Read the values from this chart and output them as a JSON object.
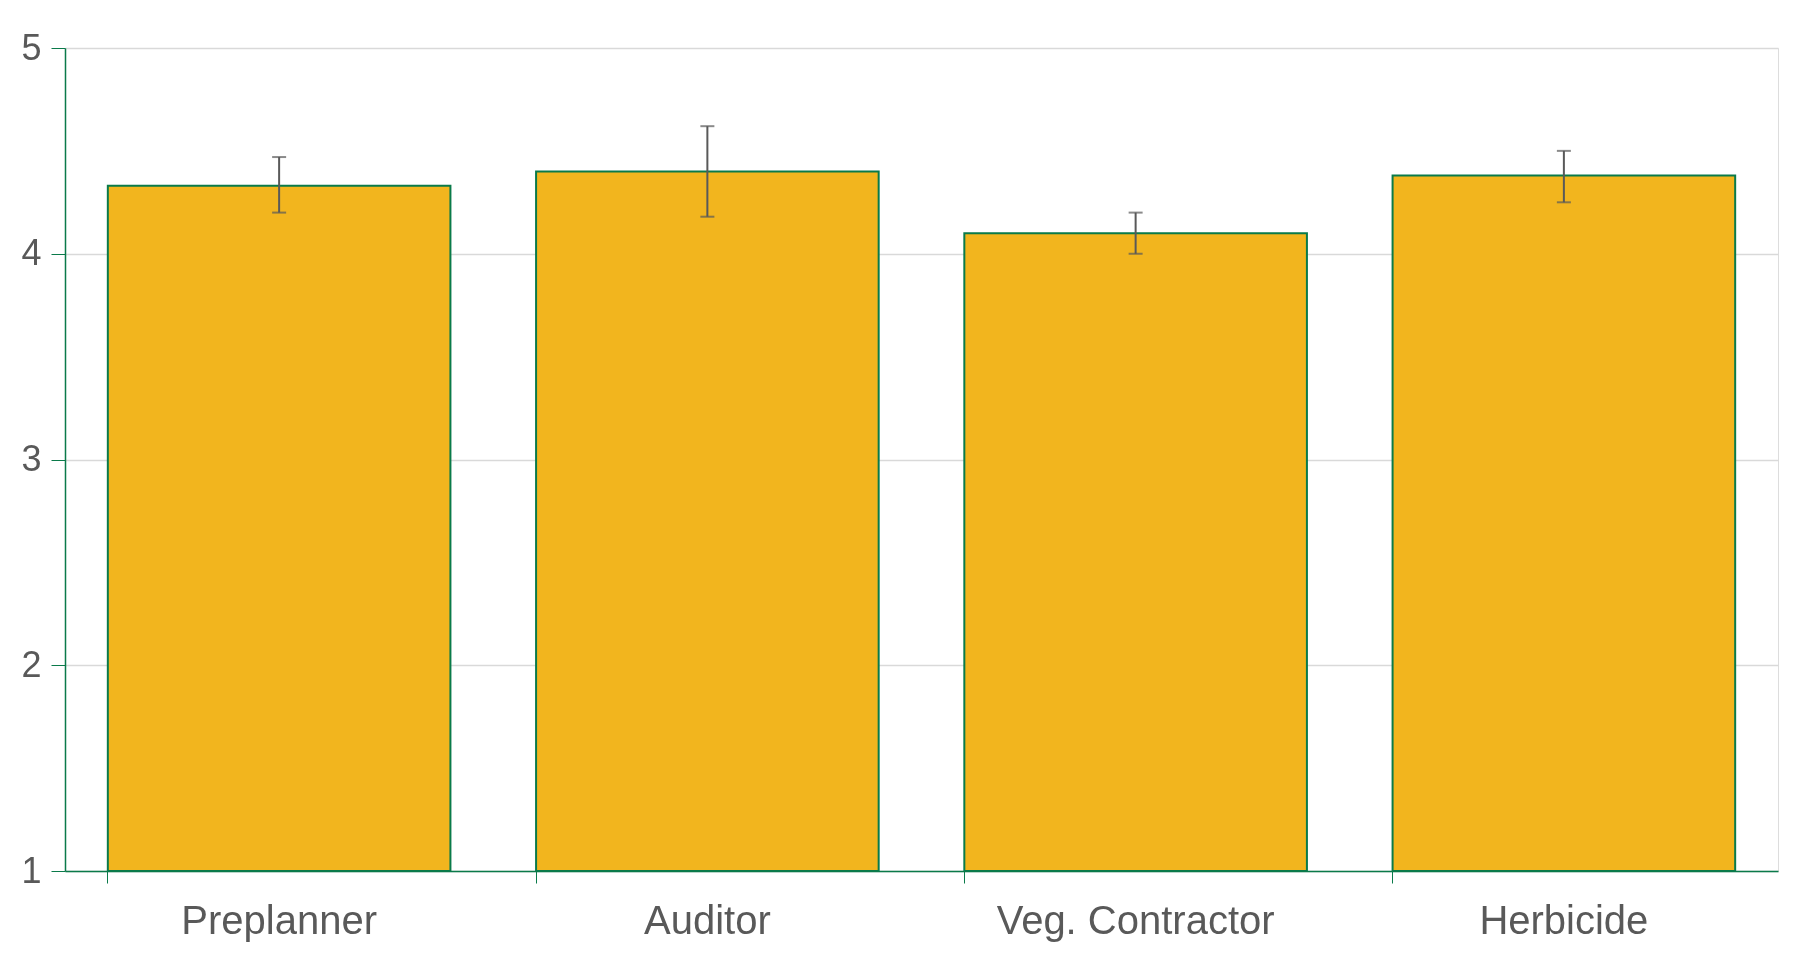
{
  "chart_data": {
    "type": "bar",
    "categories": [
      "Preplanner",
      "Auditor",
      "Veg. Contractor",
      "Herbicide"
    ],
    "values": [
      4.33,
      4.4,
      4.1,
      4.38
    ],
    "errors": [
      [
        4.2,
        4.47
      ],
      [
        4.18,
        4.62
      ],
      [
        4.0,
        4.2
      ],
      [
        4.25,
        4.5
      ]
    ],
    "color": "#f2b51e",
    "ylim": [
      1,
      5
    ],
    "yticks": [
      1,
      2,
      3,
      4,
      5
    ],
    "grid": "y"
  }
}
